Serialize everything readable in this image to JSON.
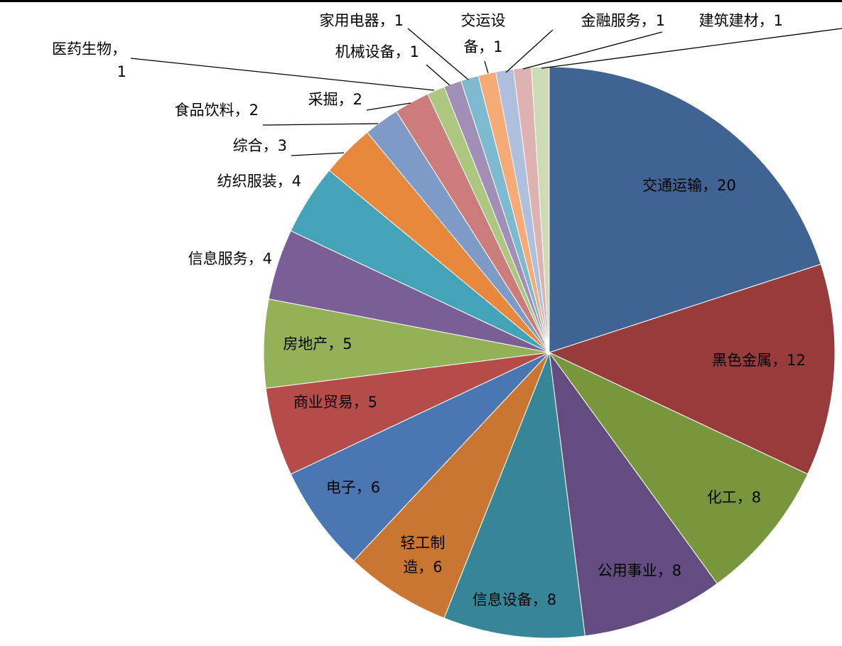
{
  "chart_data": {
    "type": "pie",
    "title": "",
    "start_angle_deg": 0,
    "direction": "clockwise",
    "slices": [
      {
        "label": "交通运输",
        "value": 20,
        "color": "#3F6494",
        "label_text": "交通运输，20"
      },
      {
        "label": "黑色金属",
        "value": 12,
        "color": "#973C3A",
        "label_text": "黑色金属，12"
      },
      {
        "label": "化工",
        "value": 8,
        "color": "#78973C",
        "label_text": "化工，8"
      },
      {
        "label": "公用事业",
        "value": 8,
        "color": "#634C7F",
        "label_text": "公用事业，8"
      },
      {
        "label": "信息设备",
        "value": 8,
        "color": "#378697",
        "label_text": "信息设备，8"
      },
      {
        "label": "轻工制造",
        "value": 6,
        "color": "#C97632",
        "label_text_lines": [
          "轻工制",
          "造，6"
        ]
      },
      {
        "label": "电子",
        "value": 6,
        "color": "#4A76B1",
        "label_text": "电子，6"
      },
      {
        "label": "商业贸易",
        "value": 5,
        "color": "#B64C49",
        "label_text": "商业贸易，5"
      },
      {
        "label": "房地产",
        "value": 5,
        "color": "#93B156",
        "label_text": "房地产，5"
      },
      {
        "label": "信息服务",
        "value": 4,
        "color": "#7A5F97",
        "label_text": "信息服务，4"
      },
      {
        "label": "纺织服装",
        "value": 4,
        "color": "#45A3B9",
        "label_text": "纺织服装，4"
      },
      {
        "label": "综合",
        "value": 3,
        "color": "#E7883C",
        "label_text": "综合，3"
      },
      {
        "label": "食品饮料",
        "value": 2,
        "color": "#7E9BC8",
        "label_text": "食品饮料，2"
      },
      {
        "label": "采掘",
        "value": 2,
        "color": "#CC7D7B",
        "label_text": "采掘，2"
      },
      {
        "label": "医药生物",
        "value": 1,
        "color": "#ADC780",
        "label_text_lines": [
          "医药生物，",
          "1"
        ]
      },
      {
        "label": "机械设备",
        "value": 1,
        "color": "#A18FB8",
        "label_text": "机械设备，1"
      },
      {
        "label": "家用电器",
        "value": 1,
        "color": "#7DBACF",
        "label_text": "家用电器，1"
      },
      {
        "label": "交运设备",
        "value": 1,
        "color": "#F6AB76",
        "label_text_lines": [
          "交运设",
          "备，1"
        ]
      },
      {
        "label": "金融服务",
        "value": 1,
        "color": "#AFC0DE",
        "label_text": "金融服务，1"
      },
      {
        "label": "建筑建材",
        "value": 1,
        "color": "#DEB2B1",
        "label_text": "建筑建材，1"
      },
      {
        "label": "",
        "value": 1,
        "color": "#CDDBB5",
        "label_text": ""
      }
    ]
  }
}
